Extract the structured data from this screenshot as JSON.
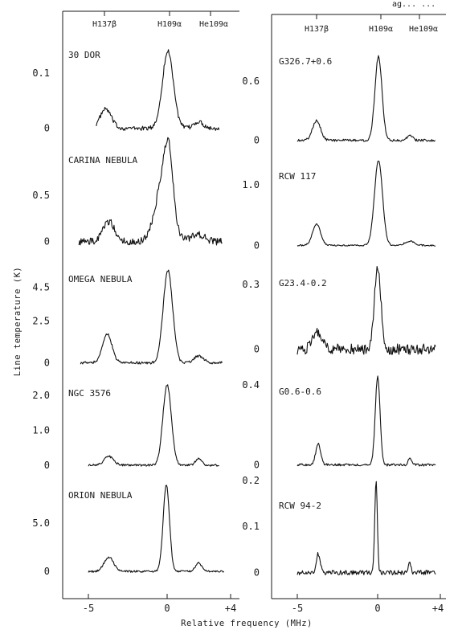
{
  "figure": {
    "top_right_fragment": "ag... ...",
    "ylabel": "Line temperature (K)",
    "xlabel": "Relative frequency (MHz)",
    "line_labels": [
      "H137β",
      "H109α",
      "He109α"
    ]
  },
  "chart_data": [
    {
      "type": "line",
      "column": "left",
      "title": "",
      "x_ticks": [
        "-5",
        "0",
        "+4"
      ],
      "xlim": [
        -6,
        4
      ],
      "panels": [
        {
          "name": "30 DOR",
          "yticks": [
            "0.1",
            "0"
          ],
          "ytick_values": [
            0.1,
            0
          ],
          "ylim": [
            -0.015,
            0.16
          ],
          "baseline": 0,
          "x_start": -4.5,
          "x_end": 3.3,
          "peaks": [
            {
              "x": -3.9,
              "amp": 0.035,
              "w": 0.35
            },
            {
              "x": 0.05,
              "amp": 0.14,
              "w": 0.35
            },
            {
              "x": 2.0,
              "amp": 0.012,
              "w": 0.3
            }
          ],
          "noise": 0.004
        },
        {
          "name": "CARINA NEBULA",
          "yticks": [
            "0.5",
            "0"
          ],
          "ytick_values": [
            0.5,
            0
          ],
          "ylim": [
            -0.1,
            1.05
          ],
          "baseline": 0,
          "x_start": -5.6,
          "x_end": 3.5,
          "peaks": [
            {
              "x": -3.7,
              "amp": 0.22,
              "w": 0.35
            },
            {
              "x": -0.2,
              "amp": 0.7,
              "w": 0.5
            },
            {
              "x": 0.1,
              "amp": 0.5,
              "w": 0.25
            },
            {
              "x": 2.0,
              "amp": 0.08,
              "w": 0.4
            }
          ],
          "noise": 0.04
        },
        {
          "name": "OMEGA NEBULA",
          "yticks": [
            "4.5",
            "2.5",
            "0"
          ],
          "ytick_values": [
            4.5,
            2.5,
            0
          ],
          "ylim": [
            -0.5,
            6.2
          ],
          "baseline": 0,
          "x_start": -5.5,
          "x_end": 3.5,
          "peaks": [
            {
              "x": -3.8,
              "amp": 1.7,
              "w": 0.3
            },
            {
              "x": 0.05,
              "amp": 5.5,
              "w": 0.3
            },
            {
              "x": 2.0,
              "amp": 0.4,
              "w": 0.3
            }
          ],
          "noise": 0.08
        },
        {
          "name": "NGC 3576",
          "yticks": [
            "2.0",
            "1.0",
            "0"
          ],
          "ytick_values": [
            2.0,
            1.0,
            0
          ],
          "ylim": [
            -0.3,
            2.6
          ],
          "baseline": 0,
          "x_start": -5.0,
          "x_end": 3.3,
          "peaks": [
            {
              "x": -3.7,
              "amp": 0.25,
              "w": 0.3
            },
            {
              "x": 0.0,
              "amp": 2.3,
              "w": 0.27
            },
            {
              "x": 2.0,
              "amp": 0.18,
              "w": 0.2
            }
          ],
          "noise": 0.03
        },
        {
          "name": "ORION NEBULA",
          "yticks": [
            "5.0",
            "0"
          ],
          "ytick_values": [
            5.0,
            0
          ],
          "ylim": [
            -0.9,
            9.6
          ],
          "baseline": 0,
          "x_start": -5.0,
          "x_end": 3.6,
          "peaks": [
            {
              "x": -3.7,
              "amp": 1.5,
              "w": 0.3
            },
            {
              "x": -0.05,
              "amp": 9.0,
              "w": 0.2
            },
            {
              "x": 2.0,
              "amp": 0.9,
              "w": 0.2
            }
          ],
          "noise": 0.1
        }
      ]
    },
    {
      "type": "line",
      "column": "right",
      "title": "",
      "x_ticks": [
        "-5",
        "0",
        "+4"
      ],
      "xlim": [
        -6,
        4
      ],
      "panels": [
        {
          "name": "G326.7+0.6",
          "yticks": [
            "0.6",
            "0"
          ],
          "ytick_values": [
            0.6,
            0
          ],
          "ylim": [
            -0.06,
            0.95
          ],
          "baseline": 0,
          "x_start": -5.0,
          "x_end": 3.6,
          "peaks": [
            {
              "x": -3.8,
              "amp": 0.2,
              "w": 0.25
            },
            {
              "x": 0.05,
              "amp": 0.85,
              "w": 0.22
            },
            {
              "x": 2.0,
              "amp": 0.06,
              "w": 0.15
            }
          ],
          "noise": 0.012
        },
        {
          "name": "RCW 117",
          "yticks": [
            "1.0",
            "0"
          ],
          "ytick_values": [
            1.0,
            0
          ],
          "ylim": [
            -0.1,
            1.5
          ],
          "baseline": 0,
          "x_start": -5.0,
          "x_end": 3.6,
          "peaks": [
            {
              "x": -3.8,
              "amp": 0.35,
              "w": 0.25
            },
            {
              "x": 0.05,
              "amp": 1.4,
              "w": 0.25
            },
            {
              "x": 2.0,
              "amp": 0.07,
              "w": 0.3
            }
          ],
          "noise": 0.012
        },
        {
          "name": "G23.4-0.2",
          "yticks": [
            "0.3",
            "0"
          ],
          "ytick_values": [
            0.3,
            0
          ],
          "ylim": [
            -0.05,
            0.42
          ],
          "baseline": 0,
          "x_start": -5.0,
          "x_end": 3.6,
          "peaks": [
            {
              "x": -3.7,
              "amp": 0.08,
              "w": 0.3
            },
            {
              "x": 0.0,
              "amp": 0.38,
              "w": 0.2
            }
          ],
          "noise": 0.025
        },
        {
          "name": "G0.6-0.6",
          "yticks": [
            "0.4",
            "0"
          ],
          "ytick_values": [
            0.4,
            0
          ],
          "ylim": [
            -0.03,
            0.46
          ],
          "baseline": 0,
          "x_start": -5.0,
          "x_end": 3.6,
          "peaks": [
            {
              "x": -3.7,
              "amp": 0.11,
              "w": 0.15
            },
            {
              "x": 0.0,
              "amp": 0.44,
              "w": 0.15
            },
            {
              "x": 2.0,
              "amp": 0.03,
              "w": 0.1
            }
          ],
          "noise": 0.006
        },
        {
          "name": "RCW 94-2",
          "yticks": [
            "0.2",
            "0.1",
            "0"
          ],
          "ytick_values": [
            0.2,
            0.1,
            0
          ],
          "ylim": [
            -0.02,
            0.205
          ],
          "baseline": 0,
          "x_start": -5.0,
          "x_end": 3.6,
          "peaks": [
            {
              "x": -3.7,
              "amp": 0.04,
              "w": 0.12
            },
            {
              "x": -0.1,
              "amp": 0.2,
              "w": 0.08
            },
            {
              "x": 2.0,
              "amp": 0.02,
              "w": 0.08
            }
          ],
          "noise": 0.005
        }
      ]
    }
  ]
}
